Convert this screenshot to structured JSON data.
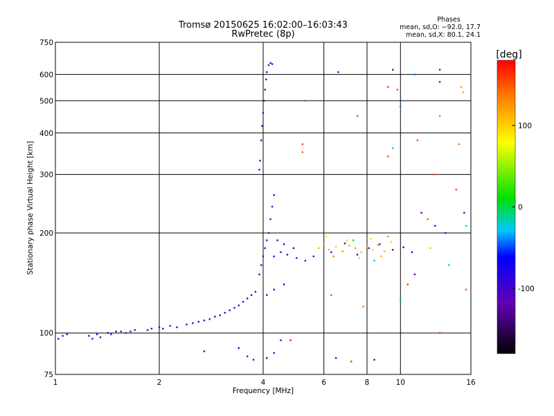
{
  "chart_data": {
    "type": "scatter",
    "title": "Tromsø 20150625 16:02:00–16:03:43",
    "subtitle": "RwPretec (8p)",
    "xlabel": "Frequency [MHz]",
    "ylabel": "Stationary phase Virtual Height [km]",
    "x_scale": "log",
    "y_scale": "log",
    "xlim": [
      1,
      16
    ],
    "ylim": [
      75,
      750
    ],
    "x_ticks": [
      1,
      2,
      4,
      6,
      8,
      10,
      16
    ],
    "y_ticks": [
      75,
      100,
      200,
      300,
      400,
      500,
      600,
      750
    ],
    "grid": true,
    "stats": {
      "heading": "Phases",
      "line_o": "mean, sd,O: −92.0, 17.7",
      "line_x": "mean, sd,X:  80.1, 24.1"
    },
    "colorbar": {
      "label": "[deg]",
      "ticks": [
        100,
        0,
        -100
      ],
      "range": [
        -180,
        180
      ]
    },
    "series": [
      {
        "points": [
          [
            1.02,
            96,
            -110
          ],
          [
            1.05,
            98,
            -105
          ],
          [
            1.08,
            99,
            -110
          ],
          [
            1.25,
            98,
            -100
          ],
          [
            1.28,
            96,
            -110
          ],
          [
            1.32,
            99,
            -100
          ],
          [
            1.35,
            97,
            -110
          ],
          [
            1.42,
            100,
            -100
          ],
          [
            1.45,
            99,
            -105
          ],
          [
            1.5,
            101,
            -100
          ],
          [
            1.55,
            101,
            -110
          ],
          [
            1.6,
            100,
            -105
          ],
          [
            1.65,
            101,
            -100
          ],
          [
            1.7,
            102,
            -110
          ],
          [
            1.85,
            102,
            -100
          ],
          [
            1.9,
            103,
            -110
          ],
          [
            2.0,
            104,
            -105
          ],
          [
            2.05,
            103,
            -100
          ],
          [
            2.15,
            105,
            -110
          ],
          [
            2.25,
            104,
            -100
          ],
          [
            2.4,
            106,
            -105
          ],
          [
            2.5,
            107,
            -110
          ],
          [
            2.6,
            108,
            -100
          ],
          [
            2.7,
            109,
            -105
          ],
          [
            2.8,
            110,
            -110
          ],
          [
            2.9,
            112,
            -100
          ],
          [
            3.0,
            113,
            -110
          ],
          [
            3.1,
            115,
            -105
          ],
          [
            3.2,
            117,
            -100
          ],
          [
            3.3,
            119,
            -110
          ],
          [
            3.4,
            121,
            -105
          ],
          [
            3.5,
            124,
            -100
          ],
          [
            3.6,
            127,
            -110
          ],
          [
            3.7,
            130,
            -100
          ],
          [
            3.8,
            133,
            -105
          ],
          [
            3.9,
            150,
            -105
          ],
          [
            3.95,
            160,
            -100
          ],
          [
            4.0,
            170,
            -110
          ],
          [
            4.05,
            180,
            -105
          ],
          [
            4.1,
            190,
            -100
          ],
          [
            4.15,
            200,
            -110
          ],
          [
            4.2,
            220,
            -105
          ],
          [
            4.25,
            240,
            -100
          ],
          [
            4.3,
            260,
            -110
          ],
          [
            3.9,
            310,
            -110
          ],
          [
            3.92,
            330,
            -105
          ],
          [
            3.95,
            380,
            -100
          ],
          [
            3.97,
            420,
            -110
          ],
          [
            4.0,
            460,
            -105
          ],
          [
            4.02,
            500,
            -100
          ],
          [
            4.05,
            540,
            -110
          ],
          [
            4.08,
            580,
            -105
          ],
          [
            4.1,
            610,
            -100
          ],
          [
            4.15,
            640,
            -110
          ],
          [
            4.2,
            650,
            -105
          ],
          [
            4.25,
            645,
            -100
          ],
          [
            4.3,
            170,
            -100
          ],
          [
            4.5,
            175,
            -110
          ],
          [
            4.7,
            172,
            -105
          ],
          [
            5.0,
            168,
            -100
          ],
          [
            5.3,
            165,
            -110
          ],
          [
            5.6,
            170,
            -95
          ],
          [
            4.4,
            190,
            -110
          ],
          [
            4.6,
            185,
            -100
          ],
          [
            4.9,
            180,
            -95
          ],
          [
            4.1,
            130,
            -110
          ],
          [
            4.3,
            135,
            -100
          ],
          [
            4.6,
            140,
            -105
          ],
          [
            5.8,
            180,
            110
          ],
          [
            6.0,
            185,
            120
          ],
          [
            6.2,
            178,
            115
          ],
          [
            6.5,
            182,
            105
          ],
          [
            6.8,
            176,
            125
          ],
          [
            7.1,
            183,
            112
          ],
          [
            7.4,
            180,
            118
          ],
          [
            7.7,
            175,
            108
          ],
          [
            8.0,
            182,
            115
          ],
          [
            8.3,
            178,
            100
          ],
          [
            8.6,
            184,
            120
          ],
          [
            9.0,
            176,
            110
          ],
          [
            6.1,
            195,
            95
          ],
          [
            6.4,
            170,
            130
          ],
          [
            7.0,
            190,
            100
          ],
          [
            7.6,
            168,
            105
          ],
          [
            8.2,
            192,
            90
          ],
          [
            8.8,
            170,
            115
          ],
          [
            9.4,
            188,
            100
          ],
          [
            6.3,
            175,
            -100
          ],
          [
            6.9,
            186,
            -105
          ],
          [
            7.5,
            172,
            -110
          ],
          [
            8.1,
            180,
            -95
          ],
          [
            8.7,
            185,
            -100
          ],
          [
            9.5,
            178,
            -110
          ],
          [
            10.2,
            181,
            -105
          ],
          [
            10.8,
            175,
            -100
          ],
          [
            7.3,
            190,
            10
          ],
          [
            8.4,
            165,
            -20
          ],
          [
            9.2,
            195,
            30
          ],
          [
            3.6,
            85,
            -110
          ],
          [
            3.75,
            83,
            -100
          ],
          [
            4.1,
            84,
            -105
          ],
          [
            4.3,
            87,
            -110
          ],
          [
            3.4,
            90,
            -100
          ],
          [
            4.5,
            95,
            -105
          ],
          [
            2.7,
            88,
            -110
          ],
          [
            4.8,
            95,
            170
          ],
          [
            5.2,
            370,
            160
          ],
          [
            5.2,
            350,
            150
          ],
          [
            5.3,
            500,
            -40
          ],
          [
            6.6,
            610,
            -110
          ],
          [
            7.5,
            450,
            150
          ],
          [
            9.5,
            620,
            -110
          ],
          [
            10.0,
            480,
            -40
          ],
          [
            11.0,
            600,
            -40
          ],
          [
            11.2,
            380,
            150
          ],
          [
            13.0,
            620,
            -110
          ],
          [
            13.0,
            570,
            -110
          ],
          [
            13.0,
            450,
            -10
          ],
          [
            15.0,
            550,
            130
          ],
          [
            15.2,
            530,
            120
          ],
          [
            14.8,
            370,
            140
          ],
          [
            12.5,
            300,
            150
          ],
          [
            14.5,
            270,
            160
          ],
          [
            15.3,
            230,
            -110
          ],
          [
            15.5,
            210,
            -20
          ],
          [
            9.2,
            550,
            160
          ],
          [
            9.8,
            540,
            150
          ],
          [
            9.2,
            340,
            150
          ],
          [
            9.5,
            360,
            -20
          ],
          [
            11.5,
            230,
            -110
          ],
          [
            12.0,
            220,
            150
          ],
          [
            12.6,
            210,
            -100
          ],
          [
            13.5,
            200,
            -110
          ],
          [
            11.0,
            150,
            -110
          ],
          [
            12.2,
            180,
            110
          ],
          [
            13.8,
            160,
            -30
          ],
          [
            15.5,
            135,
            150
          ],
          [
            10.0,
            125,
            -20
          ],
          [
            10.5,
            140,
            160
          ],
          [
            6.3,
            130,
            150
          ],
          [
            7.8,
            120,
            140
          ],
          [
            6.5,
            84,
            -100
          ],
          [
            8.4,
            83,
            -110
          ],
          [
            7.2,
            82,
            160
          ],
          [
            13.0,
            100,
            165
          ]
        ]
      }
    ]
  }
}
